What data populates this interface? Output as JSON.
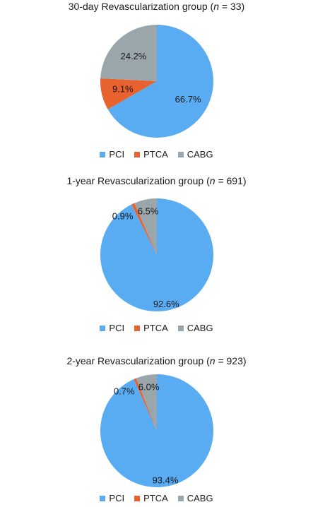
{
  "colors": {
    "PCI": "#5aacf2",
    "PTCA": "#e8622f",
    "CABG": "#9aa6ab"
  },
  "chart_data": [
    {
      "type": "pie",
      "title_prefix": "30-day Revascularization group (",
      "title_var": "n",
      "title_suffix": " = 33)",
      "categories": [
        "PCI",
        "PTCA",
        "CABG"
      ],
      "values": [
        66.7,
        9.1,
        24.2
      ],
      "data_labels": [
        "66.7%",
        "9.1%",
        "24.2%"
      ],
      "legend": [
        "PCI",
        "PTCA",
        "CABG"
      ],
      "legend_position": "bottom"
    },
    {
      "type": "pie",
      "title_prefix": "1-year Revascularization group (",
      "title_var": "n",
      "title_suffix": " = 691)",
      "categories": [
        "PCI",
        "PTCA",
        "CABG"
      ],
      "values": [
        92.6,
        0.9,
        6.5
      ],
      "data_labels": [
        "92.6%",
        "0.9%",
        "6.5%"
      ],
      "legend": [
        "PCI",
        "PTCA",
        "CABG"
      ],
      "legend_position": "bottom"
    },
    {
      "type": "pie",
      "title_prefix": "2-year Revascularization group (",
      "title_var": "n",
      "title_suffix": " = 923)",
      "categories": [
        "PCI",
        "PTCA",
        "CABG"
      ],
      "values": [
        93.4,
        0.7,
        6.0
      ],
      "data_labels": [
        "93.4%",
        "0.7%",
        "6.0%"
      ],
      "legend": [
        "PCI",
        "PTCA",
        "CABG"
      ],
      "legend_position": "bottom"
    }
  ]
}
